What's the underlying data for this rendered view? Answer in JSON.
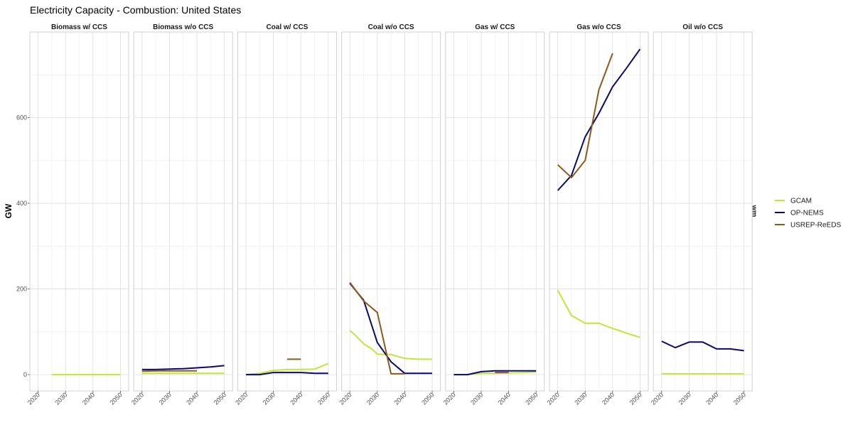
{
  "chart_data": {
    "type": "line",
    "title": "Electricity Capacity - Combustion: United States",
    "ylabel": "GW",
    "xlabel": "",
    "right_strip_label": "wm",
    "x_ticks": [
      2020,
      2030,
      2040,
      2050
    ],
    "x_range": [
      2017,
      2053
    ],
    "y_ticks": [
      0,
      200,
      400,
      600
    ],
    "ylim": [
      -38,
      800
    ],
    "grid": true,
    "legend_position": "right",
    "series_styles": [
      {
        "name": "GCAM",
        "color": "#c2e539"
      },
      {
        "name": "OP-NEMS",
        "color": "#0a0a6e"
      },
      {
        "name": "USREP-ReEDS",
        "color": "#8b5a1e"
      }
    ],
    "panels": [
      {
        "label": "Biomass w/ CCS",
        "series": [
          {
            "name": "GCAM",
            "x": [
              2025,
              2030,
              2035,
              2040,
              2045,
              2050
            ],
            "y": [
              0,
              0,
              0,
              0,
              0,
              0
            ]
          }
        ]
      },
      {
        "label": "Biomass w/o CCS",
        "series": [
          {
            "name": "GCAM",
            "x": [
              2020,
              2025,
              2030,
              2035,
              2040,
              2045,
              2050
            ],
            "y": [
              3,
              3,
              3,
              3,
              3,
              3,
              3
            ]
          },
          {
            "name": "OP-NEMS",
            "x": [
              2020,
              2025,
              2030,
              2035,
              2040,
              2045,
              2050
            ],
            "y": [
              12,
              12,
              13,
              14,
              16,
              18,
              21
            ]
          },
          {
            "name": "USREP-ReEDS",
            "x": [
              2020,
              2025,
              2030,
              2035,
              2040
            ],
            "y": [
              8,
              9,
              9,
              9,
              9
            ]
          }
        ]
      },
      {
        "label": "Coal w/ CCS",
        "series": [
          {
            "name": "GCAM",
            "x": [
              2020,
              2025,
              2030,
              2035,
              2040,
              2045,
              2050
            ],
            "y": [
              0,
              3,
              10,
              12,
              12,
              13,
              26
            ]
          },
          {
            "name": "OP-NEMS",
            "x": [
              2020,
              2025,
              2030,
              2035,
              2040,
              2045,
              2050
            ],
            "y": [
              0,
              0,
              5,
              5,
              5,
              3,
              3
            ]
          },
          {
            "name": "USREP-ReEDS",
            "x": [
              2035,
              2040
            ],
            "y": [
              36,
              36
            ]
          }
        ]
      },
      {
        "label": "Coal w/o CCS",
        "series": [
          {
            "name": "GCAM",
            "x": [
              2020,
              2022,
              2025,
              2028,
              2030,
              2033,
              2035,
              2040,
              2045,
              2050
            ],
            "y": [
              103,
              92,
              72,
              60,
              48,
              47,
              47,
              38,
              36,
              36
            ]
          },
          {
            "name": "OP-NEMS",
            "x": [
              2020,
              2025,
              2030,
              2035,
              2040,
              2045,
              2050
            ],
            "y": [
              213,
              174,
              75,
              30,
              3,
              3,
              3
            ]
          },
          {
            "name": "USREP-ReEDS",
            "x": [
              2020,
              2025,
              2030,
              2035,
              2040
            ],
            "y": [
              215,
              172,
              145,
              2,
              2
            ]
          }
        ]
      },
      {
        "label": "Gas w/ CCS",
        "series": [
          {
            "name": "GCAM",
            "x": [
              2020,
              2025,
              2030,
              2035,
              2040,
              2045,
              2050
            ],
            "y": [
              0,
              0,
              3,
              3,
              4,
              5,
              6
            ]
          },
          {
            "name": "OP-NEMS",
            "x": [
              2020,
              2025,
              2030,
              2035,
              2040,
              2045,
              2050
            ],
            "y": [
              0,
              0,
              7,
              9,
              9,
              9,
              9
            ]
          },
          {
            "name": "USREP-ReEDS",
            "x": [
              2035,
              2040
            ],
            "y": [
              5,
              5
            ]
          }
        ]
      },
      {
        "label": "Gas w/o CCS",
        "series": [
          {
            "name": "GCAM",
            "x": [
              2020,
              2025,
              2030,
              2035,
              2040,
              2045,
              2050
            ],
            "y": [
              197,
              138,
              120,
              120,
              108,
              97,
              87
            ]
          },
          {
            "name": "OP-NEMS",
            "x": [
              2020,
              2025,
              2030,
              2035,
              2040,
              2045,
              2050
            ],
            "y": [
              430,
              465,
              555,
              610,
              672,
              715,
              760
            ]
          },
          {
            "name": "USREP-ReEDS",
            "x": [
              2020,
              2025,
              2030,
              2035,
              2040
            ],
            "y": [
              490,
              460,
              500,
              665,
              750
            ]
          }
        ]
      },
      {
        "label": "Oil w/o CCS",
        "series": [
          {
            "name": "GCAM",
            "x": [
              2020,
              2025,
              2030,
              2035,
              2040,
              2045,
              2050
            ],
            "y": [
              2,
              2,
              2,
              2,
              2,
              2,
              2
            ]
          },
          {
            "name": "OP-NEMS",
            "x": [
              2020,
              2025,
              2030,
              2035,
              2040,
              2045,
              2050
            ],
            "y": [
              78,
              63,
              76,
              76,
              60,
              60,
              56
            ]
          }
        ]
      }
    ]
  }
}
